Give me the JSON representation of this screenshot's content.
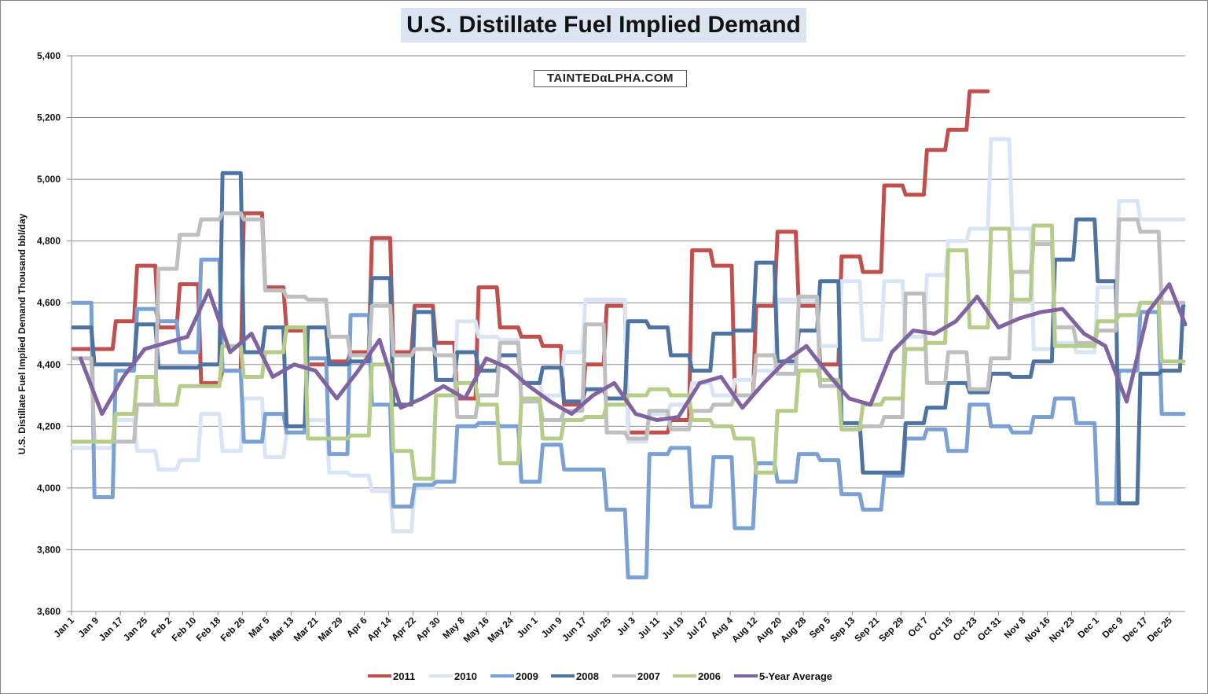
{
  "chart_data": {
    "type": "line",
    "title": "U.S. Distillate Fuel Implied Demand",
    "watermark": "TAINTEDαLPHA.COM",
    "xlabel": "",
    "ylabel": "U.S. Distillate Fuel Implied Demand Thousand bbl/day",
    "ylim": [
      3600,
      5400
    ],
    "yticks": [
      3600,
      3800,
      4000,
      4200,
      4400,
      4600,
      4800,
      5000,
      5200,
      5400
    ],
    "ytick_labels": [
      "3,600",
      "3,800",
      "4,000",
      "4,200",
      "4,400",
      "4,600",
      "4,800",
      "5,000",
      "5,200",
      "5,400"
    ],
    "x_unit": "week of year (weekly values, starting Jan 1)",
    "xtick_labels": [
      "Jan 1",
      "Jan 9",
      "Jan 17",
      "Jan 25",
      "Feb 2",
      "Feb 10",
      "Feb 18",
      "Feb 26",
      "Mar 5",
      "Mar 13",
      "Mar 21",
      "Mar 29",
      "Apr 6",
      "Apr 14",
      "Apr 22",
      "Apr 30",
      "May 8",
      "May 16",
      "May 24",
      "Jun 1",
      "Jun 9",
      "Jun 17",
      "Jun 25",
      "Jul 3",
      "Jul 11",
      "Jul 19",
      "Jul 27",
      "Aug 4",
      "Aug 12",
      "Aug 20",
      "Aug 28",
      "Sep 5",
      "Sep 13",
      "Sep 21",
      "Sep 29",
      "Oct 7",
      "Oct 15",
      "Oct 23",
      "Oct 31",
      "Nov 8",
      "Nov 16",
      "Nov 23",
      "Dec 1",
      "Dec 9",
      "Dec 17",
      "Dec 25"
    ],
    "grid": true,
    "legend_position": "bottom",
    "series": [
      {
        "name": "2011",
        "color": "#c0504d",
        "style": "step",
        "values": [
          4450,
          4450,
          4540,
          4720,
          4520,
          4660,
          4340,
          4380,
          4890,
          4650,
          4510,
          4400,
          4410,
          4440,
          4810,
          4440,
          4590,
          4470,
          4290,
          4650,
          4520,
          4490,
          4460,
          4270,
          4400,
          4590,
          4180,
          4180,
          4220,
          4770,
          4720,
          4300,
          4590,
          4830,
          4590,
          4400,
          4750,
          4700,
          4980,
          4950,
          5095,
          5160,
          5285
        ]
      },
      {
        "name": "2010",
        "color": "#d9e4f4",
        "style": "step",
        "values": [
          4130,
          4130,
          4220,
          4120,
          4060,
          4090,
          4240,
          4120,
          4290,
          4100,
          4180,
          4220,
          4050,
          4040,
          3990,
          3860,
          4000,
          4300,
          4540,
          4490,
          4480,
          4340,
          4300,
          4440,
          4610,
          4610,
          4150,
          4240,
          4270,
          4340,
          4300,
          4350,
          4380,
          4610,
          4610,
          4460,
          4670,
          4480,
          4670,
          4490,
          4690,
          4800,
          4840,
          5130,
          4840,
          4450,
          4470,
          4440,
          4650,
          4930,
          4870,
          4870,
          4870
        ]
      },
      {
        "name": "2009",
        "color": "#7ba0d4",
        "style": "step",
        "values": [
          4600,
          3970,
          4380,
          4580,
          4540,
          4440,
          4740,
          4380,
          4150,
          4240,
          4180,
          4420,
          4110,
          4560,
          4270,
          3940,
          4010,
          4020,
          4200,
          4210,
          4200,
          4020,
          4140,
          4060,
          4060,
          3930,
          3710,
          4110,
          4130,
          3940,
          4100,
          3870,
          4080,
          4020,
          4110,
          4090,
          3980,
          3930,
          4040,
          4160,
          4190,
          4120,
          4270,
          4200,
          4180,
          4230,
          4290,
          4210,
          3950,
          4380,
          4570,
          4240,
          4240
        ]
      },
      {
        "name": "2008",
        "color": "#4f73a0",
        "style": "step",
        "values": [
          4520,
          4400,
          4400,
          4530,
          4390,
          4390,
          4400,
          5020,
          4440,
          4520,
          4200,
          4520,
          4400,
          4410,
          4680,
          4270,
          4570,
          4350,
          4440,
          4380,
          4430,
          4340,
          4390,
          4280,
          4320,
          4290,
          4540,
          4520,
          4430,
          4380,
          4500,
          4510,
          4730,
          4410,
          4510,
          4670,
          4210,
          4050,
          4050,
          4210,
          4260,
          4340,
          4310,
          4370,
          4360,
          4410,
          4740,
          4870,
          4670,
          3950,
          4370,
          4380,
          4590
        ]
      },
      {
        "name": "2007",
        "color": "#bfbfbf",
        "style": "step",
        "values": [
          4420,
          4150,
          4150,
          4270,
          4710,
          4820,
          4870,
          4890,
          4870,
          4640,
          4620,
          4610,
          4490,
          4430,
          4590,
          4430,
          4450,
          4430,
          4230,
          4300,
          4470,
          4280,
          4220,
          4250,
          4530,
          4180,
          4160,
          4250,
          4190,
          4250,
          4270,
          4300,
          4430,
          4370,
          4620,
          4330,
          4190,
          4200,
          4230,
          4630,
          4340,
          4440,
          4320,
          4420,
          4700,
          4790,
          4520,
          4470,
          4510,
          4870,
          4830,
          4600,
          4600
        ]
      },
      {
        "name": "2006",
        "color": "#b5cc8a",
        "style": "step",
        "values": [
          4150,
          4150,
          4240,
          4360,
          4270,
          4330,
          4330,
          4460,
          4360,
          4440,
          4520,
          4160,
          4160,
          4170,
          4400,
          4120,
          4030,
          4300,
          4340,
          4270,
          4080,
          4290,
          4160,
          4220,
          4230,
          4270,
          4300,
          4320,
          4300,
          4220,
          4200,
          4160,
          4050,
          4250,
          4380,
          4350,
          4190,
          4270,
          4290,
          4450,
          4470,
          4770,
          4520,
          4840,
          4610,
          4850,
          4460,
          4460,
          4540,
          4560,
          4600,
          4410,
          4410
        ]
      },
      {
        "name": "5-Year Average",
        "color": "#8064a2",
        "style": "line",
        "values": [
          4420,
          4240,
          4360,
          4450,
          4470,
          4490,
          4640,
          4440,
          4500,
          4360,
          4400,
          4380,
          4290,
          4380,
          4480,
          4260,
          4290,
          4330,
          4290,
          4420,
          4390,
          4330,
          4280,
          4240,
          4300,
          4340,
          4240,
          4220,
          4230,
          4340,
          4360,
          4260,
          4340,
          4410,
          4460,
          4370,
          4290,
          4270,
          4440,
          4510,
          4500,
          4540,
          4620,
          4520,
          4550,
          4570,
          4580,
          4500,
          4460,
          4280,
          4570,
          4660,
          4530
        ]
      }
    ]
  }
}
